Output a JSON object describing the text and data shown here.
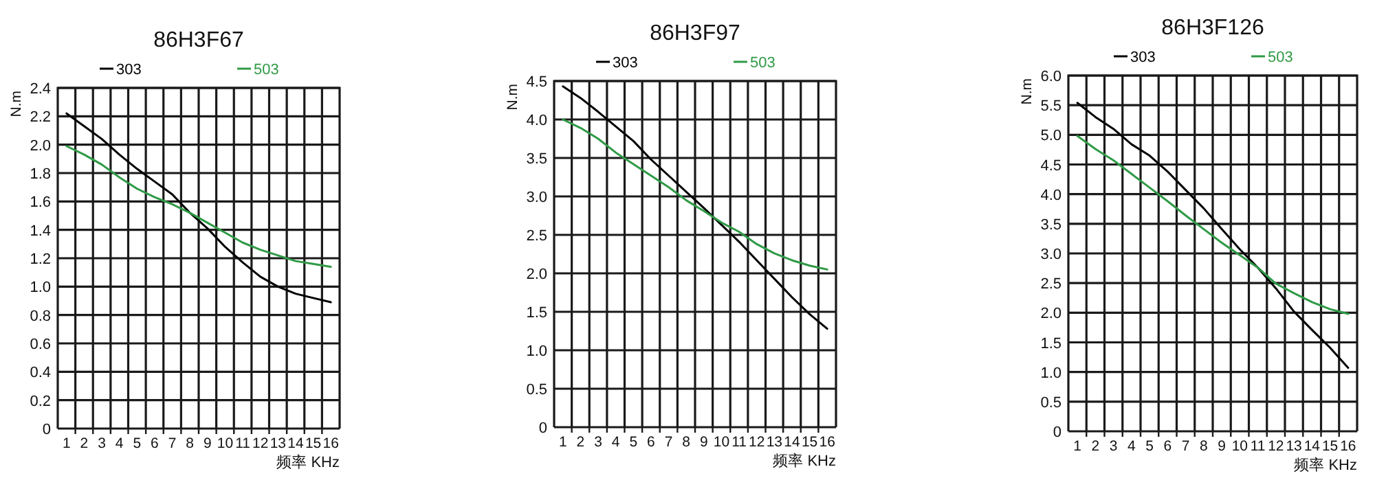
{
  "chart_data": [
    {
      "type": "line",
      "title": "86H3F67",
      "xlabel": "频率 KHz",
      "ylabel": "N.m",
      "x": [
        1,
        2,
        3,
        4,
        5,
        6,
        7,
        8,
        9,
        10,
        11,
        12,
        13,
        14,
        15,
        16
      ],
      "series": [
        {
          "name": "303",
          "color": "#000000",
          "values": [
            2.22,
            2.13,
            2.04,
            1.93,
            1.83,
            1.74,
            1.65,
            1.52,
            1.41,
            1.28,
            1.17,
            1.07,
            1.0,
            0.95,
            0.92,
            0.89
          ]
        },
        {
          "name": "503",
          "color": "#2f9a46",
          "values": [
            1.99,
            1.93,
            1.86,
            1.77,
            1.69,
            1.63,
            1.58,
            1.52,
            1.45,
            1.38,
            1.31,
            1.26,
            1.22,
            1.18,
            1.16,
            1.14
          ]
        }
      ],
      "xlim": [
        0.5,
        16.5
      ],
      "xticks": [
        1,
        2,
        3,
        4,
        5,
        6,
        7,
        8,
        9,
        10,
        11,
        12,
        13,
        14,
        15,
        16,
        {
          "value": 1.5,
          "label": null
        },
        {
          "value": 2.5,
          "label": null
        },
        {
          "value": 3.5,
          "label": null
        },
        {
          "value": 4.5,
          "label": null
        },
        {
          "value": 5.5,
          "label": null
        },
        {
          "value": 6.5,
          "label": null
        },
        {
          "value": 7.5,
          "label": null
        },
        {
          "value": 8.5,
          "label": null
        },
        {
          "value": 9.5,
          "label": null
        },
        {
          "value": 10.5,
          "label": null
        },
        {
          "value": 11.5,
          "label": null
        },
        {
          "value": 12.5,
          "label": null
        },
        {
          "value": 13.5,
          "label": null
        },
        {
          "value": 14.5,
          "label": null
        },
        {
          "value": 15.5,
          "label": null
        }
      ],
      "ylim": [
        0,
        2.4
      ],
      "yticks": [
        {
          "value": 0,
          "label": "0"
        },
        {
          "value": 0.2,
          "label": "0.2"
        },
        {
          "value": 0.4,
          "label": "0.4"
        },
        {
          "value": 0.6,
          "label": "0.6"
        },
        {
          "value": 0.8,
          "label": "0.8"
        },
        {
          "value": 1.0,
          "label": "1.0"
        },
        {
          "value": 1.2,
          "label": "1.2"
        },
        {
          "value": 1.4,
          "label": "1.4"
        },
        {
          "value": 1.6,
          "label": "1.6"
        },
        {
          "value": 1.8,
          "label": "1.8"
        },
        {
          "value": 2.0,
          "label": "2.0"
        },
        {
          "value": 2.2,
          "label": "2.2"
        },
        {
          "value": 2.4,
          "label": "2.4"
        }
      ],
      "grid": true,
      "legend": "top"
    },
    {
      "type": "line",
      "title": "86H3F97",
      "xlabel": "频率 KHz",
      "ylabel": "N.m",
      "x": [
        1,
        2,
        3,
        4,
        5,
        6,
        7,
        8,
        9,
        10,
        11,
        12,
        13,
        14,
        15,
        16
      ],
      "series": [
        {
          "name": "303",
          "color": "#000000",
          "values": [
            4.43,
            4.28,
            4.1,
            3.91,
            3.72,
            3.48,
            3.27,
            3.06,
            2.85,
            2.63,
            2.41,
            2.17,
            1.93,
            1.69,
            1.47,
            1.28
          ]
        },
        {
          "name": "503",
          "color": "#2f9a46",
          "values": [
            4.0,
            3.89,
            3.75,
            3.57,
            3.42,
            3.27,
            3.12,
            2.95,
            2.81,
            2.66,
            2.54,
            2.38,
            2.26,
            2.17,
            2.1,
            2.05
          ]
        }
      ],
      "xlim": [
        0.5,
        16.5
      ],
      "xticks": [
        1,
        2,
        3,
        4,
        5,
        6,
        7,
        8,
        9,
        10,
        11,
        12,
        13,
        14,
        15,
        16,
        {
          "value": 1.5,
          "label": null
        },
        {
          "value": 2.5,
          "label": null
        },
        {
          "value": 3.5,
          "label": null
        },
        {
          "value": 4.5,
          "label": null
        },
        {
          "value": 5.5,
          "label": null
        },
        {
          "value": 6.5,
          "label": null
        },
        {
          "value": 7.5,
          "label": null
        },
        {
          "value": 8.5,
          "label": null
        },
        {
          "value": 9.5,
          "label": null
        },
        {
          "value": 10.5,
          "label": null
        },
        {
          "value": 11.5,
          "label": null
        },
        {
          "value": 12.5,
          "label": null
        },
        {
          "value": 13.5,
          "label": null
        },
        {
          "value": 14.5,
          "label": null
        },
        {
          "value": 15.5,
          "label": null
        }
      ],
      "ylim": [
        0,
        4.5
      ],
      "yticks": [
        {
          "value": 0,
          "label": "0"
        },
        {
          "value": 0.5,
          "label": "0.5"
        },
        {
          "value": 1.0,
          "label": "1.0"
        },
        {
          "value": 1.5,
          "label": "1.5"
        },
        {
          "value": 2.0,
          "label": "2.0"
        },
        {
          "value": 2.5,
          "label": "2.5"
        },
        {
          "value": 3.0,
          "label": "3.0"
        },
        {
          "value": 3.5,
          "label": "3.5"
        },
        {
          "value": 4.0,
          "label": "4.0"
        },
        {
          "value": 4.5,
          "label": "4.5"
        }
      ],
      "grid": true,
      "legend": "top"
    },
    {
      "type": "line",
      "title": "86H3F126",
      "xlabel": "频率 KHz",
      "ylabel": "N.m",
      "x": [
        1,
        2,
        3,
        4,
        5,
        6,
        7,
        8,
        9,
        10,
        11,
        12,
        13,
        14,
        15,
        16
      ],
      "series": [
        {
          "name": "303",
          "color": "#000000",
          "values": [
            5.54,
            5.3,
            5.1,
            4.84,
            4.65,
            4.38,
            4.07,
            3.76,
            3.41,
            3.07,
            2.76,
            2.41,
            2.02,
            1.71,
            1.41,
            1.07
          ]
        },
        {
          "name": "503",
          "color": "#2f9a46",
          "values": [
            4.98,
            4.76,
            4.57,
            4.34,
            4.11,
            3.88,
            3.64,
            3.41,
            3.18,
            2.97,
            2.76,
            2.49,
            2.33,
            2.18,
            2.06,
            1.98
          ]
        }
      ],
      "xlim": [
        0.5,
        16.5
      ],
      "xticks": [
        1,
        2,
        3,
        4,
        5,
        6,
        7,
        8,
        9,
        10,
        11,
        12,
        13,
        14,
        15,
        16,
        {
          "value": 1.5,
          "label": null
        },
        {
          "value": 2.5,
          "label": null
        },
        {
          "value": 3.5,
          "label": null
        },
        {
          "value": 4.5,
          "label": null
        },
        {
          "value": 5.5,
          "label": null
        },
        {
          "value": 6.5,
          "label": null
        },
        {
          "value": 7.5,
          "label": null
        },
        {
          "value": 8.5,
          "label": null
        },
        {
          "value": 9.5,
          "label": null
        },
        {
          "value": 10.5,
          "label": null
        },
        {
          "value": 11.5,
          "label": null
        },
        {
          "value": 12.5,
          "label": null
        },
        {
          "value": 13.5,
          "label": null
        },
        {
          "value": 14.5,
          "label": null
        },
        {
          "value": 15.5,
          "label": null
        }
      ],
      "ylim": [
        0,
        6.0
      ],
      "yticks": [
        {
          "value": 0,
          "label": "0"
        },
        {
          "value": 0.5,
          "label": "0.5"
        },
        {
          "value": 1.0,
          "label": "1.0"
        },
        {
          "value": 1.5,
          "label": "1.5"
        },
        {
          "value": 2.0,
          "label": "2.0"
        },
        {
          "value": 2.5,
          "label": "2.5"
        },
        {
          "value": 3.0,
          "label": "3.0"
        },
        {
          "value": 3.5,
          "label": "3.5"
        },
        {
          "value": 4.0,
          "label": "4.0"
        },
        {
          "value": 4.5,
          "label": "4.5"
        },
        {
          "value": 5.0,
          "label": "5.0"
        },
        {
          "value": 5.5,
          "label": "5.5"
        },
        {
          "value": 6.0,
          "label": "6.0"
        }
      ],
      "grid": true,
      "legend": "top"
    }
  ]
}
